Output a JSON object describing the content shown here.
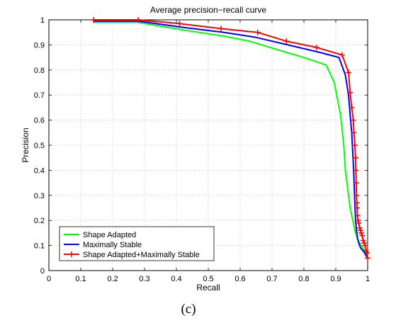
{
  "chart_data": {
    "type": "line",
    "title": "Average precision−recall curve",
    "xlabel": "Recall",
    "ylabel": "Precision",
    "xlim": [
      0,
      1
    ],
    "ylim": [
      0,
      1
    ],
    "xticks": [
      0,
      0.1,
      0.2,
      0.3,
      0.4,
      0.5,
      0.6,
      0.7,
      0.8,
      0.9,
      1
    ],
    "yticks": [
      0,
      0.1,
      0.2,
      0.3,
      0.4,
      0.5,
      0.6,
      0.7,
      0.8,
      0.9,
      1
    ],
    "xtick_labels": [
      "0",
      "0.1",
      "0.2",
      "0.3",
      "0.4",
      "0.5",
      "0.6",
      "0.7",
      "0.8",
      "0.9",
      "1"
    ],
    "ytick_labels": [
      "0",
      "0.1",
      "0.2",
      "0.3",
      "0.4",
      "0.5",
      "0.6",
      "0.7",
      "0.8",
      "0.9",
      "1"
    ],
    "grid": true,
    "legend_position": "bottom-left",
    "series": [
      {
        "name": "Shape Adapted",
        "color": "#00ff00",
        "marker": "none",
        "x": [
          0.14,
          0.28,
          0.42,
          0.55,
          0.63,
          0.72,
          0.8,
          0.87,
          0.895,
          0.915,
          0.925,
          0.93,
          0.935,
          0.94,
          0.945,
          0.95,
          0.955,
          0.96,
          0.965,
          0.97,
          0.98,
          0.99,
          1.0
        ],
        "y": [
          0.99,
          0.99,
          0.96,
          0.935,
          0.915,
          0.88,
          0.85,
          0.82,
          0.75,
          0.62,
          0.5,
          0.4,
          0.35,
          0.3,
          0.25,
          0.22,
          0.19,
          0.16,
          0.14,
          0.12,
          0.1,
          0.08,
          0.05
        ]
      },
      {
        "name": "Maximally Stable",
        "color": "#0000ff",
        "marker": "none",
        "x": [
          0.14,
          0.28,
          0.42,
          0.55,
          0.65,
          0.75,
          0.85,
          0.91,
          0.93,
          0.94,
          0.945,
          0.95,
          0.953,
          0.956,
          0.958,
          0.96,
          0.962,
          0.965,
          0.968,
          0.972,
          0.978,
          0.985,
          0.99,
          0.995,
          1.0
        ],
        "y": [
          0.995,
          0.995,
          0.97,
          0.95,
          0.93,
          0.9,
          0.87,
          0.85,
          0.78,
          0.7,
          0.62,
          0.55,
          0.48,
          0.4,
          0.33,
          0.26,
          0.2,
          0.16,
          0.13,
          0.11,
          0.09,
          0.08,
          0.07,
          0.06,
          0.05
        ]
      },
      {
        "name": "Shape Adapted+Maximally Stable",
        "color": "#ff0000",
        "marker": "+",
        "x": [
          0.14,
          0.28,
          0.41,
          0.54,
          0.655,
          0.745,
          0.84,
          0.92,
          0.94,
          0.945,
          0.95,
          0.955,
          0.957,
          0.96,
          0.962,
          0.963,
          0.964,
          0.965,
          0.966,
          0.967,
          0.968,
          0.97,
          0.972,
          0.975,
          0.978,
          0.98,
          0.983,
          0.986,
          0.989,
          0.992,
          0.995,
          0.998,
          1.0
        ],
        "y": [
          1.0,
          1.0,
          0.985,
          0.965,
          0.95,
          0.915,
          0.89,
          0.86,
          0.79,
          0.71,
          0.65,
          0.6,
          0.55,
          0.5,
          0.45,
          0.4,
          0.35,
          0.3,
          0.27,
          0.25,
          0.22,
          0.2,
          0.19,
          0.17,
          0.16,
          0.15,
          0.14,
          0.12,
          0.11,
          0.1,
          0.08,
          0.07,
          0.05
        ]
      }
    ]
  },
  "caption": "(c)"
}
